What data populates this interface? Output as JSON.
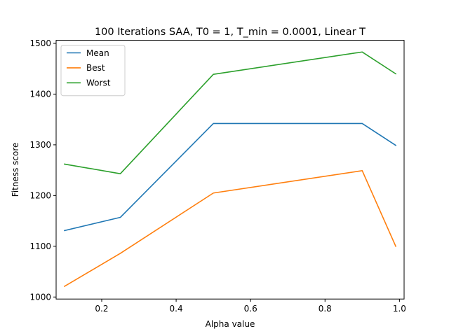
{
  "chart_data": {
    "type": "line",
    "title": "100 Iterations SAA, T0 = 1, T_min = 0.0001, Linear T",
    "xlabel": "Alpha value",
    "ylabel": "Fitness score",
    "x": [
      0.1,
      0.25,
      0.5,
      0.9,
      0.99
    ],
    "xlim": [
      0.0775,
      1.0125
    ],
    "ylim": [
      996,
      1506
    ],
    "xticks": [
      0.2,
      0.4,
      0.6,
      0.8,
      1.0
    ],
    "xtick_labels": [
      "0.2",
      "0.4",
      "0.6",
      "0.8",
      "1.0"
    ],
    "yticks": [
      1000,
      1100,
      1200,
      1300,
      1400,
      1500
    ],
    "ytick_labels": [
      "1000",
      "1100",
      "1200",
      "1300",
      "1400",
      "1500"
    ],
    "grid": false,
    "legend_position": "top-left",
    "series": [
      {
        "name": "Mean",
        "color": "#1f77b4",
        "values": [
          1131,
          1157,
          1342,
          1342,
          1299
        ]
      },
      {
        "name": "Best",
        "color": "#ff7f0e",
        "values": [
          1021,
          1086,
          1205,
          1249,
          1100
        ]
      },
      {
        "name": "Worst",
        "color": "#2ca02c",
        "values": [
          1262,
          1243,
          1439,
          1483,
          1440
        ]
      }
    ]
  }
}
